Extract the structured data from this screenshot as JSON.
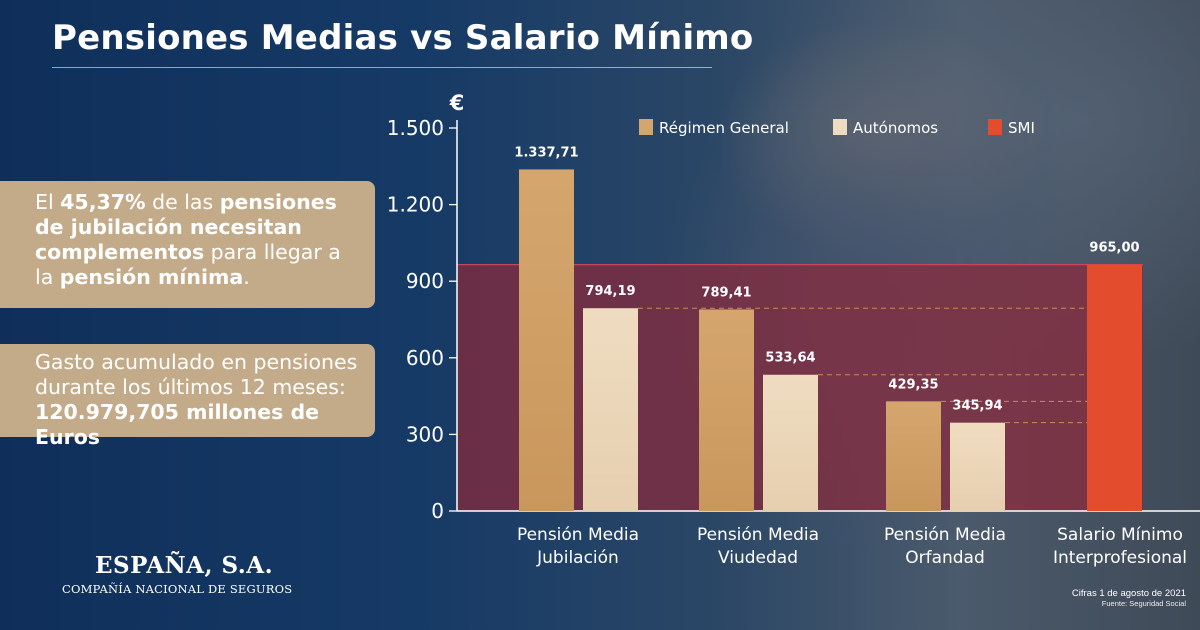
{
  "header": {
    "title": "Pensiones Medias vs Salario Mínimo"
  },
  "info_boxes": {
    "box1": {
      "t1": "El ",
      "b1": "45,37%",
      "t2": " de las ",
      "b2": "pensiones de jubilación necesitan complementos",
      "t3": " para llegar a la ",
      "b3": "pensión mínima",
      "t4": "."
    },
    "box2": {
      "line1": "Gasto acumulado en pensiones",
      "line2": "durante los últimos 12 meses:",
      "line3": "120.979,705 millones de Euros"
    }
  },
  "logo": {
    "name": "ESPAÑA, S.A.",
    "subtitle": "COMPAÑÍA NACIONAL DE SEGUROS"
  },
  "footnote": {
    "date": "Cifras 1 de agosto de 2021",
    "source": "Fuente: Seguridad Social"
  },
  "colors": {
    "regimen_general": "#d4a66e",
    "autonomos": "#efdcc0",
    "smi": "#e34c2c",
    "smi_band": "#8a2a3c"
  },
  "chart_data": {
    "type": "bar",
    "unit_label": "€",
    "ylim": [
      0,
      1500
    ],
    "yticks": [
      0,
      300,
      600,
      900,
      1200,
      1500
    ],
    "ytick_labels": [
      "0",
      "300",
      "600",
      "900",
      "1.200",
      "1.500"
    ],
    "legend_position": "top",
    "categories": [
      [
        "Pensión Media",
        "Jubilación"
      ],
      [
        "Pensión Media",
        "Viudedad"
      ],
      [
        "Pensión Media",
        "Orfandad"
      ],
      [
        "Salario Mínimo",
        "Interprofesional"
      ]
    ],
    "series": [
      {
        "name": "Régimen General",
        "color_key": "regimen_general",
        "values": [
          1337.71,
          789.41,
          429.35,
          null
        ],
        "labels": [
          "1.337,71",
          "789,41",
          "429,35",
          null
        ]
      },
      {
        "name": "Autónomos",
        "color_key": "autonomos",
        "values": [
          794.19,
          533.64,
          345.94,
          null
        ],
        "labels": [
          "794,19",
          "533,64",
          "345,94",
          null
        ]
      },
      {
        "name": "SMI",
        "color_key": "smi",
        "values": [
          null,
          null,
          null,
          965.0
        ],
        "labels": [
          null,
          null,
          null,
          "965,00"
        ]
      }
    ],
    "reference_band": {
      "from": 0,
      "to": 965.0
    }
  }
}
